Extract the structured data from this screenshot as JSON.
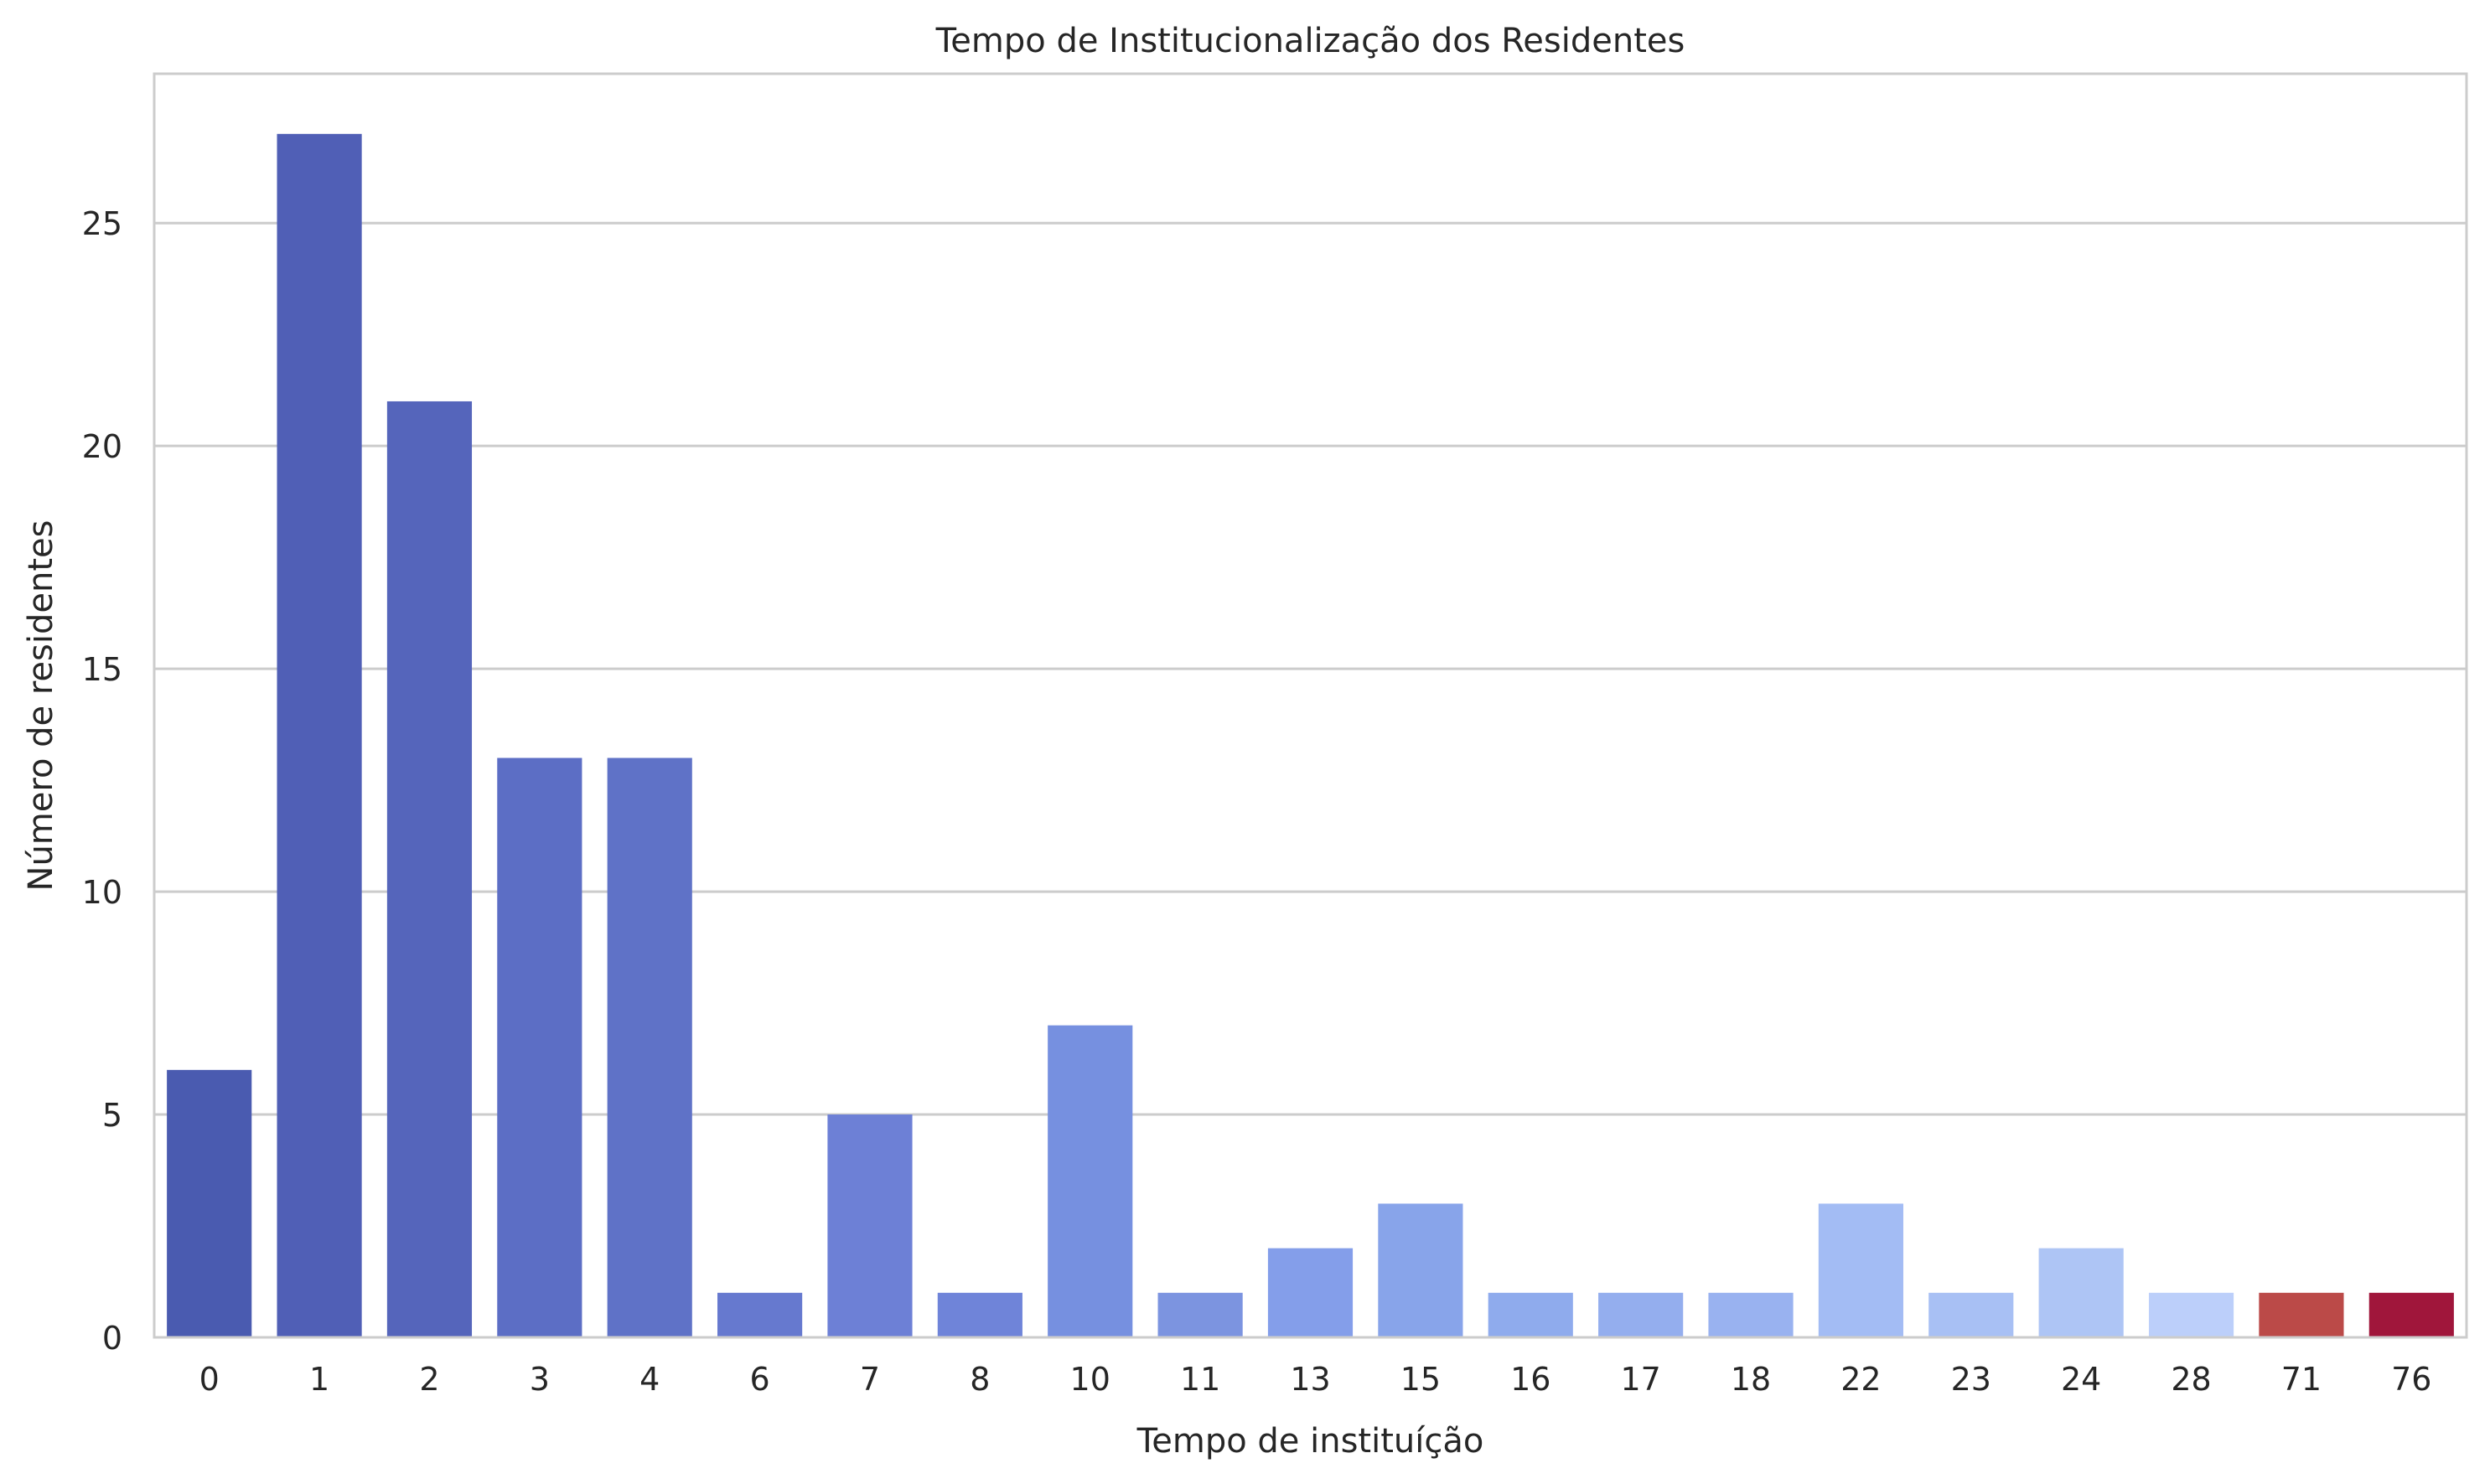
{
  "chart_data": {
    "type": "bar",
    "title": "Tempo de Institucionalização dos Residentes",
    "xlabel": "Tempo de instituíção",
    "ylabel": "Número de residentes",
    "categories": [
      "0",
      "1",
      "2",
      "3",
      "4",
      "6",
      "7",
      "8",
      "10",
      "11",
      "13",
      "15",
      "16",
      "17",
      "18",
      "22",
      "23",
      "24",
      "28",
      "71",
      "76"
    ],
    "values": [
      6,
      27,
      21,
      13,
      13,
      1,
      5,
      1,
      7,
      1,
      2,
      3,
      1,
      1,
      1,
      3,
      1,
      2,
      1,
      1,
      1
    ],
    "colors": [
      "#4a5bb0",
      "#505fb6",
      "#5565bb",
      "#5c6ec5",
      "#5f72c7",
      "#6679cf",
      "#6d80d6",
      "#6f84d9",
      "#7690e0",
      "#7c94e0",
      "#849eea",
      "#88a4ea",
      "#8fabed",
      "#94aeee",
      "#99b2f0",
      "#a3bcf4",
      "#a8c0f4",
      "#aec5f5",
      "#bccffa",
      "#bb4a48",
      "#a0163b"
    ],
    "yticks": [
      0,
      5,
      10,
      15,
      20,
      25
    ],
    "ylim": [
      0,
      28.35
    ],
    "grid": true,
    "legend": "none"
  }
}
